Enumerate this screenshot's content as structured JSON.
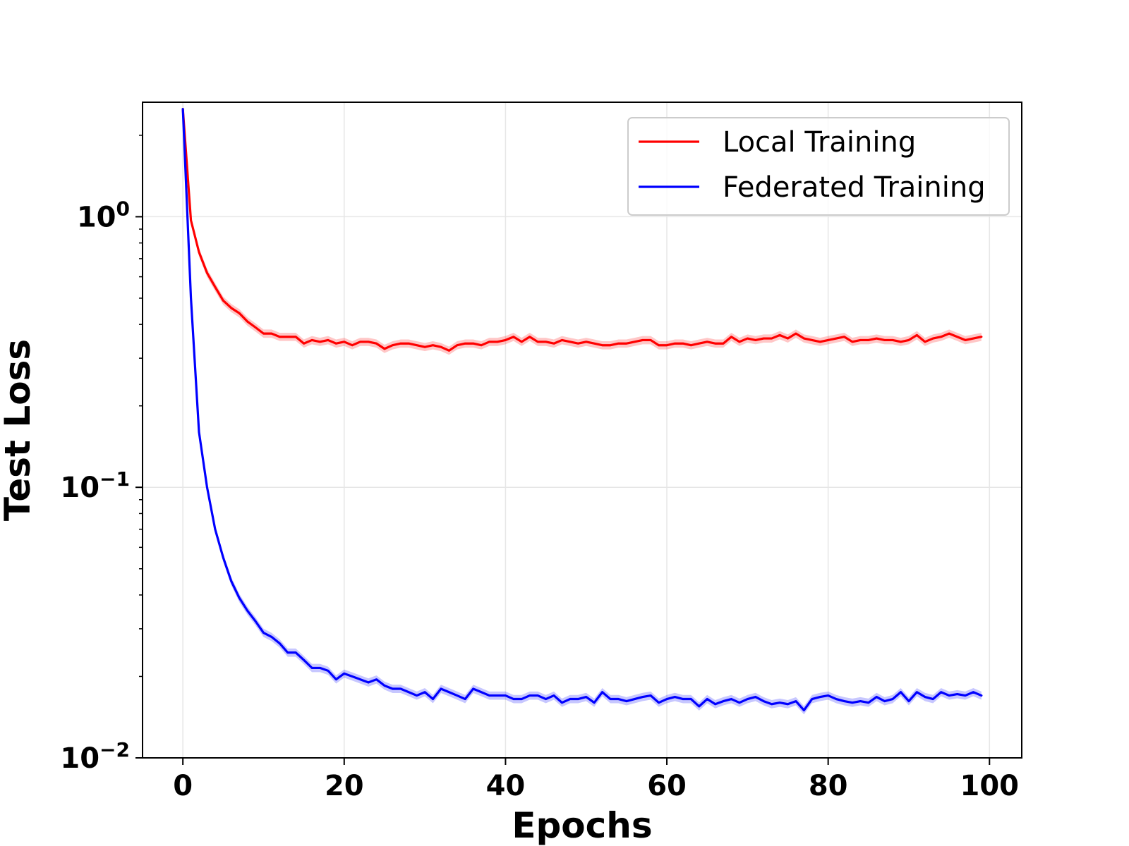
{
  "chart_data": {
    "type": "line",
    "title": "",
    "xlabel": "Epochs",
    "ylabel": "Test Loss",
    "xlim": [
      -5,
      104
    ],
    "ylim": [
      0.01,
      2.65
    ],
    "yscale": "log",
    "grid": true,
    "legend_position": "top-right",
    "x_ticks": [
      0,
      20,
      40,
      60,
      80,
      100
    ],
    "x_tick_labels": [
      "0",
      "20",
      "40",
      "60",
      "80",
      "100"
    ],
    "y_ticks": [
      {
        "value": 1,
        "base": "10",
        "exp": "0"
      },
      {
        "value": 0.1,
        "base": "10",
        "exp": "−1"
      },
      {
        "value": 0.01,
        "base": "10",
        "exp": "−2"
      }
    ],
    "x": [
      0,
      1,
      2,
      3,
      4,
      5,
      6,
      7,
      8,
      9,
      10,
      11,
      12,
      13,
      14,
      15,
      16,
      17,
      18,
      19,
      20,
      21,
      22,
      23,
      24,
      25,
      26,
      27,
      28,
      29,
      30,
      31,
      32,
      33,
      34,
      35,
      36,
      37,
      38,
      39,
      40,
      41,
      42,
      43,
      44,
      45,
      46,
      47,
      48,
      49,
      50,
      51,
      52,
      53,
      54,
      55,
      56,
      57,
      58,
      59,
      60,
      61,
      62,
      63,
      64,
      65,
      66,
      67,
      68,
      69,
      70,
      71,
      72,
      73,
      74,
      75,
      76,
      77,
      78,
      79,
      80,
      81,
      82,
      83,
      84,
      85,
      86,
      87,
      88,
      89,
      90,
      91,
      92,
      93,
      94,
      95,
      96,
      97,
      98,
      99
    ],
    "series": [
      {
        "name": "Local Training",
        "color": "#ff0000",
        "values": [
          2.5,
          0.97,
          0.74,
          0.62,
          0.55,
          0.49,
          0.46,
          0.44,
          0.41,
          0.39,
          0.37,
          0.37,
          0.36,
          0.36,
          0.36,
          0.34,
          0.35,
          0.345,
          0.35,
          0.34,
          0.345,
          0.335,
          0.345,
          0.345,
          0.34,
          0.325,
          0.335,
          0.34,
          0.34,
          0.335,
          0.33,
          0.335,
          0.33,
          0.32,
          0.335,
          0.34,
          0.34,
          0.335,
          0.345,
          0.345,
          0.35,
          0.36,
          0.345,
          0.36,
          0.345,
          0.345,
          0.34,
          0.35,
          0.345,
          0.34,
          0.345,
          0.34,
          0.335,
          0.335,
          0.34,
          0.34,
          0.345,
          0.35,
          0.35,
          0.335,
          0.335,
          0.34,
          0.34,
          0.335,
          0.34,
          0.345,
          0.34,
          0.34,
          0.36,
          0.345,
          0.355,
          0.35,
          0.355,
          0.355,
          0.365,
          0.355,
          0.37,
          0.355,
          0.35,
          0.345,
          0.35,
          0.355,
          0.36,
          0.345,
          0.35,
          0.35,
          0.355,
          0.35,
          0.35,
          0.345,
          0.35,
          0.365,
          0.345,
          0.355,
          0.36,
          0.37,
          0.36,
          0.35,
          0.355,
          0.36
        ]
      },
      {
        "name": "Federated Training",
        "color": "#0000ff",
        "values": [
          2.5,
          0.5,
          0.16,
          0.1,
          0.07,
          0.055,
          0.045,
          0.039,
          0.035,
          0.032,
          0.029,
          0.028,
          0.0265,
          0.0245,
          0.0245,
          0.023,
          0.0215,
          0.0215,
          0.021,
          0.0195,
          0.0205,
          0.02,
          0.0195,
          0.019,
          0.0195,
          0.0185,
          0.018,
          0.018,
          0.0175,
          0.017,
          0.0175,
          0.0165,
          0.018,
          0.0175,
          0.017,
          0.0165,
          0.018,
          0.0175,
          0.017,
          0.017,
          0.017,
          0.0165,
          0.0165,
          0.017,
          0.017,
          0.0165,
          0.017,
          0.016,
          0.0165,
          0.0165,
          0.0168,
          0.016,
          0.0175,
          0.0165,
          0.0165,
          0.0162,
          0.0165,
          0.0168,
          0.017,
          0.016,
          0.0165,
          0.0168,
          0.0165,
          0.0165,
          0.0155,
          0.0165,
          0.0158,
          0.0162,
          0.0165,
          0.016,
          0.0165,
          0.0168,
          0.0162,
          0.0158,
          0.016,
          0.0158,
          0.0162,
          0.015,
          0.0165,
          0.0168,
          0.017,
          0.0165,
          0.0162,
          0.016,
          0.0162,
          0.016,
          0.0168,
          0.0162,
          0.0165,
          0.0175,
          0.0162,
          0.0175,
          0.0168,
          0.0165,
          0.0175,
          0.017,
          0.0172,
          0.017,
          0.0175,
          0.017
        ]
      }
    ]
  }
}
